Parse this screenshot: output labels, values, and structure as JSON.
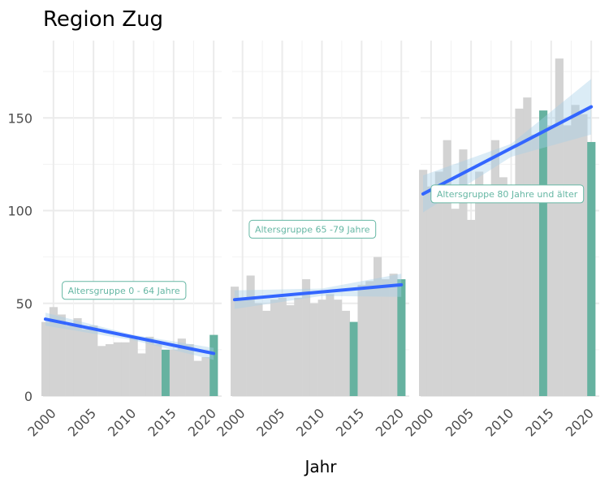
{
  "title": "Region Zug",
  "chart_data": {
    "type": "bar",
    "title": "Region Zug",
    "xlabel": "Jahr",
    "ylabel": "",
    "ylim": [
      0,
      190
    ],
    "yticks": [
      0,
      50,
      100,
      150
    ],
    "xticks": [
      2000,
      2005,
      2010,
      2015,
      2020
    ],
    "xlim": [
      1998.7,
      2021.0
    ],
    "highlight_color": "#66b2a0",
    "base_color": "#d3d3d3",
    "trend_color": "#3366ff",
    "band_color": "#a6cfe8",
    "label_color": "#66b7a4",
    "panels": [
      {
        "label": "Altersgruppe 0 - 64 Jahre",
        "label_pos": [
          2008.8,
          57
        ],
        "years": [
          1999,
          2000,
          2001,
          2002,
          2003,
          2004,
          2005,
          2006,
          2007,
          2008,
          2009,
          2010,
          2011,
          2012,
          2013,
          2014,
          2015,
          2016,
          2017,
          2018,
          2019,
          2020
        ],
        "values": [
          40,
          48,
          44,
          38,
          42,
          36,
          38,
          27,
          28,
          29,
          29,
          32,
          23,
          32,
          28,
          25,
          25,
          31,
          28,
          19,
          21,
          33
        ],
        "highlight_years": [
          2014,
          2020
        ],
        "trend": [
          [
            1999,
            41.5
          ],
          [
            2020,
            23
          ]
        ],
        "band_upper": [
          [
            1999,
            45
          ],
          [
            2010,
            33
          ],
          [
            2020,
            26
          ]
        ],
        "band_lower": [
          [
            1999,
            38
          ],
          [
            2010,
            30
          ],
          [
            2020,
            19.5
          ]
        ]
      },
      {
        "label": "Altersgruppe 65 -79 Jahre",
        "label_pos": [
          2008.8,
          90
        ],
        "years": [
          1999,
          2000,
          2001,
          2002,
          2003,
          2004,
          2005,
          2006,
          2007,
          2008,
          2009,
          2010,
          2011,
          2012,
          2013,
          2014,
          2015,
          2016,
          2017,
          2018,
          2019,
          2020
        ],
        "values": [
          59,
          53,
          65,
          50,
          46,
          52,
          53,
          49,
          53,
          63,
          50,
          52,
          55,
          52,
          46,
          40,
          60,
          62,
          75,
          63,
          66,
          63
        ],
        "highlight_years": [
          2014,
          2020
        ],
        "trend": [
          [
            1999,
            52
          ],
          [
            2020,
            60
          ]
        ],
        "band_upper": [
          [
            1999,
            57
          ],
          [
            2010,
            58
          ],
          [
            2020,
            66
          ]
        ],
        "band_lower": [
          [
            1999,
            47
          ],
          [
            2010,
            54
          ],
          [
            2020,
            53.5
          ]
        ]
      },
      {
        "label": "Altersgruppe 80 Jahre und älter",
        "label_pos": [
          2009.5,
          109
        ],
        "years": [
          1999,
          2000,
          2001,
          2002,
          2003,
          2004,
          2005,
          2006,
          2007,
          2008,
          2009,
          2010,
          2011,
          2012,
          2013,
          2014,
          2015,
          2016,
          2017,
          2018,
          2019,
          2020
        ],
        "values": [
          122,
          113,
          121,
          138,
          101,
          133,
          95,
          121,
          113,
          138,
          118,
          113,
          155,
          161,
          141,
          154,
          146,
          182,
          146,
          157,
          152,
          137
        ],
        "highlight_years": [
          2014,
          2020
        ],
        "trend": [
          [
            1999,
            109
          ],
          [
            2020,
            156
          ]
        ],
        "band_upper": [
          [
            1999,
            119
          ],
          [
            2010,
            136
          ],
          [
            2020,
            171
          ]
        ],
        "band_lower": [
          [
            1999,
            99
          ],
          [
            2010,
            129
          ],
          [
            2020,
            141
          ]
        ]
      }
    ]
  }
}
